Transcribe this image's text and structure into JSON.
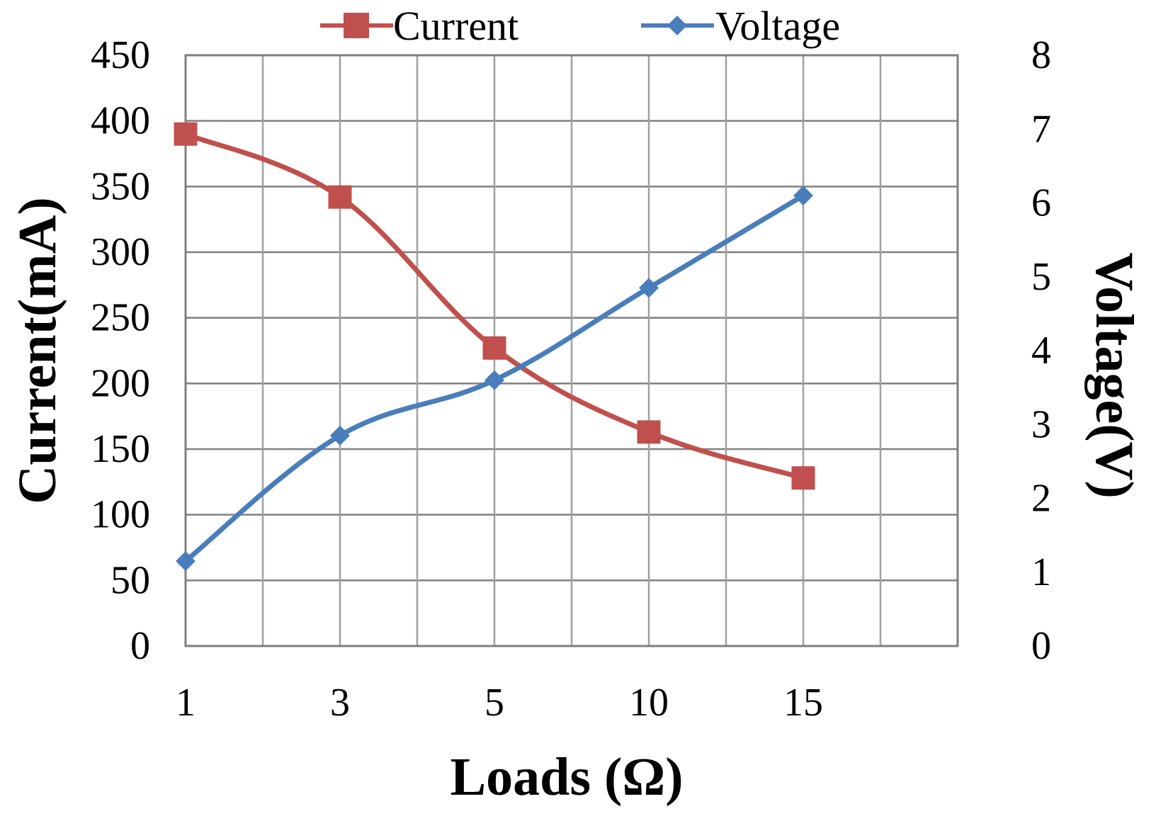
{
  "chart_data": {
    "type": "line",
    "title": "",
    "xlabel": "Loads (Ω)",
    "ylabel_left": "Current(mA)",
    "ylabel_right": "Voltage(V)",
    "categories": [
      "1",
      "",
      "3",
      "",
      "5",
      "",
      "10",
      "",
      "15",
      ""
    ],
    "x_tick_labels": [
      "1",
      "3",
      "5",
      "10",
      "15"
    ],
    "y_left_ticks": [
      "0",
      "50",
      "100",
      "150",
      "200",
      "250",
      "300",
      "350",
      "400",
      "450"
    ],
    "y_right_ticks": [
      "0",
      "1",
      "2",
      "3",
      "4",
      "5",
      "6",
      "7",
      "8"
    ],
    "ylim_left": [
      0,
      450
    ],
    "ylim_right": [
      0,
      8
    ],
    "grid": true,
    "legend_position": "top",
    "series": [
      {
        "name": "Current",
        "axis": "left",
        "color": "#c0504d",
        "marker": "square",
        "x": [
          "1",
          "3",
          "5",
          "10",
          "15"
        ],
        "values": [
          390,
          342,
          227,
          163,
          128
        ]
      },
      {
        "name": "Voltage",
        "axis": "right",
        "color": "#4a7ebb",
        "marker": "diamond",
        "x": [
          "1",
          "3",
          "5",
          "10",
          "15"
        ],
        "values": [
          1.15,
          2.85,
          3.6,
          4.85,
          6.1
        ]
      }
    ]
  }
}
